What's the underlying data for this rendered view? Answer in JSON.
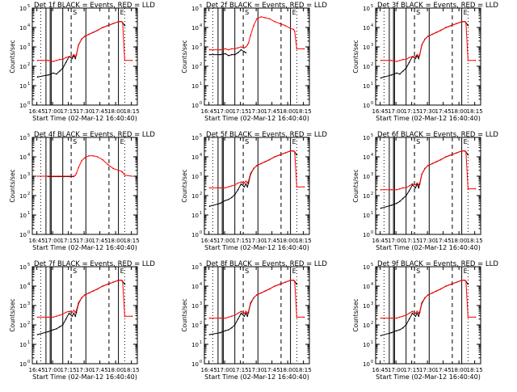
{
  "figure": {
    "x_label": "Start Time (02-Mar-12 16:40:40)",
    "y_label": "Counts/sec",
    "tick_labels": [
      "16:45",
      "17:00",
      "17:15",
      "17:30",
      "17:45",
      "18:00",
      "18:15"
    ],
    "y_tick_labels": [
      "10",
      "10",
      "10",
      "10",
      "10",
      "10"
    ],
    "y_tick_exponents": [
      "0",
      "1",
      "2",
      "3",
      "4",
      "5"
    ],
    "markers": [
      "S",
      "E"
    ]
  },
  "colors": {
    "events": "#000000",
    "lld": "#ff0000",
    "axes": "#000000",
    "background": "#ffffff"
  },
  "chart_data": [
    {
      "type": "line",
      "title": "Det 1f BLACK = Events, RED = LLD",
      "x_unit": "minutes after 16:40:40",
      "xlim": [
        0,
        100
      ],
      "ylim_log10": [
        0,
        5
      ],
      "series": [
        {
          "name": "Events",
          "x": [
            5,
            15,
            20,
            23,
            26,
            29,
            32,
            35,
            38,
            39.5,
            41,
            42,
            44,
            47,
            50,
            54,
            58,
            62,
            67,
            72,
            77,
            82,
            85,
            86,
            88
          ],
          "y": [
            1.45,
            1.55,
            1.65,
            1.6,
            1.75,
            1.9,
            2.2,
            2.5,
            2.4,
            2.55,
            2.4,
            2.6,
            3.1,
            3.4,
            3.55,
            3.65,
            3.75,
            3.85,
            4.0,
            4.1,
            4.2,
            4.3,
            4.3,
            4.25,
            4.1
          ]
        },
        {
          "name": "LLD",
          "x": [
            5,
            15,
            20,
            23,
            26,
            29,
            32,
            35,
            38,
            39.5,
            41,
            42,
            44,
            47,
            50,
            54,
            58,
            62,
            67,
            72,
            77,
            82,
            85,
            86,
            88,
            95
          ],
          "y": [
            2.3,
            2.3,
            2.25,
            2.3,
            2.35,
            2.35,
            2.45,
            2.5,
            2.5,
            2.6,
            2.5,
            2.6,
            3.1,
            3.4,
            3.55,
            3.65,
            3.75,
            3.85,
            4.0,
            4.1,
            4.2,
            4.3,
            4.3,
            4.25,
            2.3,
            2.3
          ]
        }
      ]
    },
    {
      "type": "line",
      "title": "Det 2f BLACK = Events, RED = LLD",
      "x_unit": "minutes after 16:40:40",
      "xlim": [
        0,
        100
      ],
      "ylim_log10": [
        0,
        5
      ],
      "series": [
        {
          "name": "Events",
          "x": [
            5,
            15,
            20,
            23,
            26,
            29,
            32,
            35,
            38,
            39.5
          ],
          "y": [
            2.6,
            2.6,
            2.65,
            2.55,
            2.6,
            2.6,
            2.7,
            2.85,
            2.75,
            2.7
          ]
        },
        {
          "name": "LLD",
          "x": [
            5,
            15,
            20,
            23,
            26,
            29,
            32,
            35,
            38,
            39.5,
            41,
            42,
            44,
            47,
            50,
            54,
            58,
            62,
            67,
            72,
            77,
            82,
            85,
            86,
            88,
            95
          ],
          "y": [
            2.85,
            2.85,
            2.9,
            2.85,
            2.9,
            2.9,
            2.95,
            3.0,
            2.95,
            3.0,
            3.1,
            3.2,
            3.6,
            4.1,
            4.45,
            4.55,
            4.5,
            4.45,
            4.3,
            4.2,
            4.1,
            3.95,
            3.9,
            3.8,
            2.9,
            2.9
          ]
        }
      ]
    },
    {
      "type": "line",
      "title": "Det 3f BLACK = Events, RED = LLD",
      "x_unit": "minutes after 16:40:40",
      "xlim": [
        0,
        100
      ],
      "ylim_log10": [
        0,
        5
      ],
      "series": [
        {
          "name": "Events",
          "x": [
            5,
            15,
            20,
            23,
            26,
            29,
            32,
            35,
            38,
            39.5,
            41,
            42,
            44,
            47,
            50,
            54,
            58,
            62,
            67,
            72,
            77,
            82,
            85,
            86,
            88
          ],
          "y": [
            1.4,
            1.55,
            1.65,
            1.6,
            1.75,
            1.9,
            2.2,
            2.5,
            2.4,
            2.55,
            2.4,
            2.6,
            3.1,
            3.4,
            3.55,
            3.65,
            3.75,
            3.85,
            4.0,
            4.1,
            4.2,
            4.3,
            4.3,
            4.25,
            4.1
          ]
        },
        {
          "name": "LLD",
          "x": [
            5,
            15,
            20,
            23,
            26,
            29,
            32,
            35,
            38,
            39.5,
            41,
            42,
            44,
            47,
            50,
            54,
            58,
            62,
            67,
            72,
            77,
            82,
            85,
            86,
            88,
            95
          ],
          "y": [
            2.3,
            2.3,
            2.25,
            2.3,
            2.35,
            2.35,
            2.45,
            2.5,
            2.5,
            2.6,
            2.5,
            2.6,
            3.1,
            3.4,
            3.55,
            3.65,
            3.75,
            3.85,
            4.0,
            4.1,
            4.2,
            4.3,
            4.3,
            4.25,
            2.3,
            2.3
          ]
        }
      ]
    },
    {
      "type": "line",
      "title": "Det 4f BLACK = Events, RED = LLD",
      "x_unit": "minutes after 16:40:40",
      "xlim": [
        0,
        100
      ],
      "ylim_log10": [
        0,
        5
      ],
      "series": [
        {
          "name": "Events",
          "x": [
            15,
            20,
            25,
            30,
            35,
            39.5
          ],
          "y": [
            2.98,
            2.98,
            2.98,
            2.98,
            2.98,
            2.98
          ]
        },
        {
          "name": "LLD",
          "x": [
            5,
            15,
            20,
            25,
            30,
            35,
            39.5,
            41,
            42,
            44,
            47,
            50,
            54,
            58,
            62,
            67,
            72,
            77,
            82,
            85,
            86,
            88,
            95
          ],
          "y": [
            3.0,
            3.0,
            3.0,
            3.0,
            3.0,
            3.0,
            3.0,
            3.05,
            3.15,
            3.45,
            3.8,
            3.95,
            4.05,
            4.05,
            4.0,
            3.85,
            3.6,
            3.4,
            3.3,
            3.25,
            3.2,
            3.05,
            3.0
          ]
        }
      ]
    },
    {
      "type": "line",
      "title": "Det 5f BLACK = Events, RED = LLD",
      "x_unit": "minutes after 16:40:40",
      "xlim": [
        0,
        100
      ],
      "ylim_log10": [
        0,
        5
      ],
      "series": [
        {
          "name": "Events",
          "x": [
            5,
            15,
            20,
            23,
            26,
            29,
            32,
            35,
            38,
            39.5,
            41,
            42,
            44,
            47,
            50,
            54,
            58,
            62,
            67,
            72,
            77,
            82,
            85,
            86,
            88
          ],
          "y": [
            1.45,
            1.6,
            1.75,
            1.8,
            1.9,
            2.05,
            2.3,
            2.6,
            2.45,
            2.6,
            2.45,
            2.65,
            3.1,
            3.4,
            3.55,
            3.65,
            3.75,
            3.85,
            4.0,
            4.1,
            4.2,
            4.3,
            4.3,
            4.25,
            4.1
          ]
        },
        {
          "name": "LLD",
          "x": [
            5,
            15,
            20,
            23,
            26,
            29,
            32,
            35,
            38,
            39.5,
            41,
            42,
            44,
            47,
            50,
            54,
            58,
            62,
            67,
            72,
            77,
            82,
            85,
            86,
            88,
            95
          ],
          "y": [
            2.4,
            2.4,
            2.4,
            2.45,
            2.5,
            2.55,
            2.65,
            2.7,
            2.65,
            2.75,
            2.65,
            2.75,
            3.15,
            3.4,
            3.55,
            3.65,
            3.75,
            3.85,
            4.0,
            4.1,
            4.2,
            4.3,
            4.3,
            4.25,
            2.45,
            2.45
          ]
        }
      ]
    },
    {
      "type": "line",
      "title": "Det 6f BLACK = Events, RED = LLD",
      "x_unit": "minutes after 16:40:40",
      "xlim": [
        0,
        100
      ],
      "ylim_log10": [
        0,
        5
      ],
      "series": [
        {
          "name": "Events",
          "x": [
            5,
            15,
            20,
            23,
            26,
            29,
            32,
            35,
            38,
            39.5,
            41,
            42,
            44,
            47,
            50,
            54,
            58,
            62,
            67,
            72,
            77,
            82,
            85,
            86,
            88
          ],
          "y": [
            1.35,
            1.5,
            1.6,
            1.7,
            1.85,
            2.0,
            2.25,
            2.55,
            2.4,
            2.6,
            2.4,
            2.6,
            3.1,
            3.4,
            3.55,
            3.65,
            3.75,
            3.85,
            4.0,
            4.1,
            4.2,
            4.3,
            4.3,
            4.25,
            4.1
          ]
        },
        {
          "name": "LLD",
          "x": [
            5,
            15,
            20,
            23,
            26,
            29,
            32,
            35,
            38,
            39.5,
            41,
            42,
            44,
            47,
            50,
            54,
            58,
            62,
            67,
            72,
            77,
            82,
            85,
            86,
            88,
            95
          ],
          "y": [
            2.3,
            2.3,
            2.3,
            2.35,
            2.4,
            2.4,
            2.5,
            2.6,
            2.55,
            2.65,
            2.55,
            2.65,
            3.1,
            3.4,
            3.55,
            3.65,
            3.75,
            3.85,
            4.0,
            4.1,
            4.2,
            4.3,
            4.3,
            4.25,
            2.35,
            2.35
          ]
        }
      ]
    },
    {
      "type": "line",
      "title": "Det 7f BLACK = Events, RED = LLD",
      "x_unit": "minutes after 16:40:40",
      "xlim": [
        0,
        100
      ],
      "ylim_log10": [
        0,
        5
      ],
      "series": [
        {
          "name": "Events",
          "x": [
            5,
            15,
            20,
            23,
            26,
            29,
            32,
            35,
            38,
            39.5,
            41,
            42,
            44,
            47,
            50,
            54,
            58,
            62,
            67,
            72,
            77,
            82,
            85,
            86,
            88
          ],
          "y": [
            1.5,
            1.65,
            1.75,
            1.8,
            1.9,
            2.0,
            2.3,
            2.6,
            2.45,
            2.6,
            2.45,
            2.65,
            3.1,
            3.4,
            3.55,
            3.65,
            3.75,
            3.85,
            4.0,
            4.1,
            4.2,
            4.3,
            4.3,
            4.25,
            4.1
          ]
        },
        {
          "name": "LLD",
          "x": [
            5,
            15,
            20,
            23,
            26,
            29,
            32,
            35,
            38,
            39.5,
            41,
            42,
            44,
            47,
            50,
            54,
            58,
            62,
            67,
            72,
            77,
            82,
            85,
            86,
            88,
            95
          ],
          "y": [
            2.4,
            2.4,
            2.4,
            2.45,
            2.5,
            2.55,
            2.65,
            2.7,
            2.65,
            2.75,
            2.65,
            2.75,
            3.15,
            3.4,
            3.55,
            3.65,
            3.75,
            3.85,
            4.0,
            4.1,
            4.2,
            4.3,
            4.3,
            4.25,
            2.45,
            2.45
          ]
        }
      ]
    },
    {
      "type": "line",
      "title": "Det 8f BLACK = Events, RED = LLD",
      "x_unit": "minutes after 16:40:40",
      "xlim": [
        0,
        100
      ],
      "ylim_log10": [
        0,
        5
      ],
      "series": [
        {
          "name": "Events",
          "x": [
            5,
            15,
            20,
            23,
            26,
            29,
            32,
            35,
            38,
            39.5,
            41,
            42,
            44,
            47,
            50,
            54,
            58,
            62,
            67,
            72,
            77,
            82,
            85,
            86,
            88
          ],
          "y": [
            1.5,
            1.6,
            1.7,
            1.75,
            1.85,
            2.0,
            2.3,
            2.6,
            2.45,
            2.6,
            2.45,
            2.65,
            3.1,
            3.4,
            3.55,
            3.65,
            3.75,
            3.85,
            4.0,
            4.1,
            4.2,
            4.3,
            4.3,
            4.25,
            4.1
          ]
        },
        {
          "name": "LLD",
          "x": [
            5,
            15,
            20,
            23,
            26,
            29,
            32,
            35,
            38,
            39.5,
            41,
            42,
            44,
            47,
            50,
            54,
            58,
            62,
            67,
            72,
            77,
            82,
            85,
            86,
            88,
            95
          ],
          "y": [
            2.35,
            2.35,
            2.35,
            2.4,
            2.45,
            2.5,
            2.6,
            2.7,
            2.6,
            2.7,
            2.6,
            2.7,
            3.15,
            3.4,
            3.55,
            3.65,
            3.75,
            3.85,
            4.0,
            4.1,
            4.2,
            4.3,
            4.3,
            4.25,
            2.4,
            2.4
          ]
        }
      ]
    },
    {
      "type": "line",
      "title": "Det 9f BLACK = Events, RED = LLD",
      "x_unit": "minutes after 16:40:40",
      "xlim": [
        0,
        100
      ],
      "ylim_log10": [
        0,
        5
      ],
      "series": [
        {
          "name": "Events",
          "x": [
            5,
            15,
            20,
            23,
            26,
            29,
            32,
            35,
            38,
            39.5,
            41,
            42,
            44,
            47,
            50,
            54,
            58,
            62,
            67,
            72,
            77,
            82,
            85,
            86,
            88
          ],
          "y": [
            1.45,
            1.6,
            1.7,
            1.75,
            1.85,
            2.0,
            2.3,
            2.6,
            2.45,
            2.6,
            2.45,
            2.65,
            3.1,
            3.4,
            3.55,
            3.65,
            3.75,
            3.85,
            4.0,
            4.1,
            4.2,
            4.3,
            4.3,
            4.25,
            4.1
          ]
        },
        {
          "name": "LLD",
          "x": [
            5,
            15,
            20,
            23,
            26,
            29,
            32,
            35,
            38,
            39.5,
            41,
            42,
            44,
            47,
            50,
            54,
            58,
            62,
            67,
            72,
            77,
            82,
            85,
            86,
            88,
            95
          ],
          "y": [
            2.35,
            2.35,
            2.35,
            2.4,
            2.45,
            2.5,
            2.6,
            2.7,
            2.6,
            2.7,
            2.6,
            2.7,
            3.15,
            3.4,
            3.55,
            3.65,
            3.75,
            3.85,
            4.0,
            4.1,
            4.2,
            4.3,
            4.3,
            4.25,
            2.4,
            2.4
          ]
        }
      ]
    }
  ]
}
